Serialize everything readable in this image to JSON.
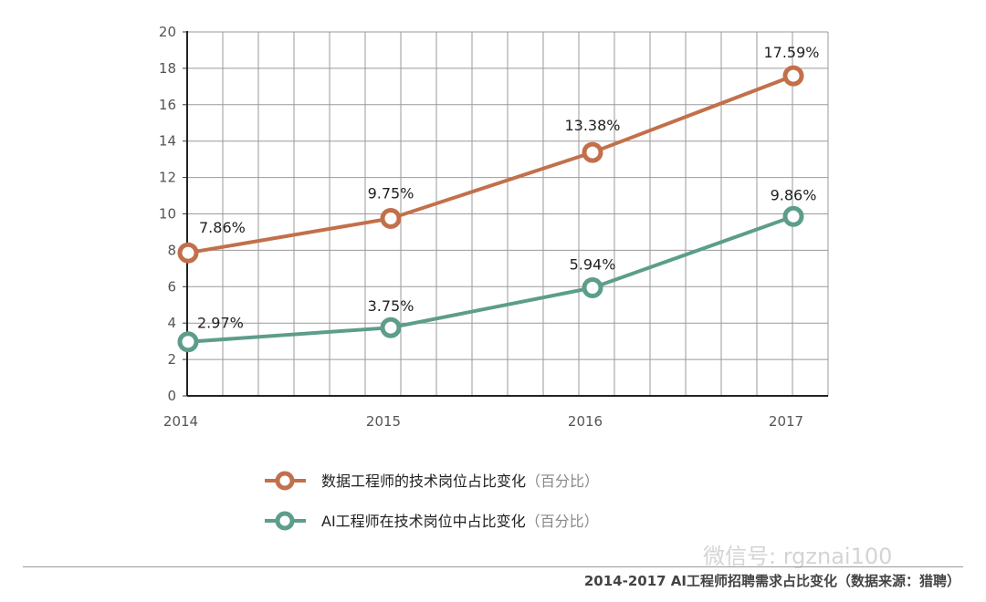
{
  "chart_data": {
    "type": "line",
    "x": [
      "2014",
      "2015",
      "2016",
      "2017"
    ],
    "ylim": [
      0,
      20
    ],
    "yticks": [
      0,
      2,
      4,
      6,
      8,
      10,
      12,
      14,
      16,
      18,
      20
    ],
    "grid": true,
    "legend_position": "bottom",
    "series": [
      {
        "name": "数据工程师的技术岗位占比变化",
        "legend_suffix": "（百分比）",
        "color": "#c2704b",
        "values": [
          7.86,
          9.75,
          13.38,
          17.59
        ],
        "labels": [
          "7.86%",
          "9.75%",
          "13.38%",
          "17.59%"
        ]
      },
      {
        "name": "AI工程师在技术岗位中占比变化",
        "legend_suffix": "（百分比）",
        "color": "#5c9d8b",
        "values": [
          2.97,
          3.75,
          5.94,
          9.86
        ],
        "labels": [
          "2.97%",
          "3.75%",
          "5.94%",
          "9.86%"
        ]
      }
    ]
  },
  "watermark": "微信号: rgznai100",
  "caption": "2014-2017 AI工程师招聘需求占比变化（数据来源：猎聘）"
}
